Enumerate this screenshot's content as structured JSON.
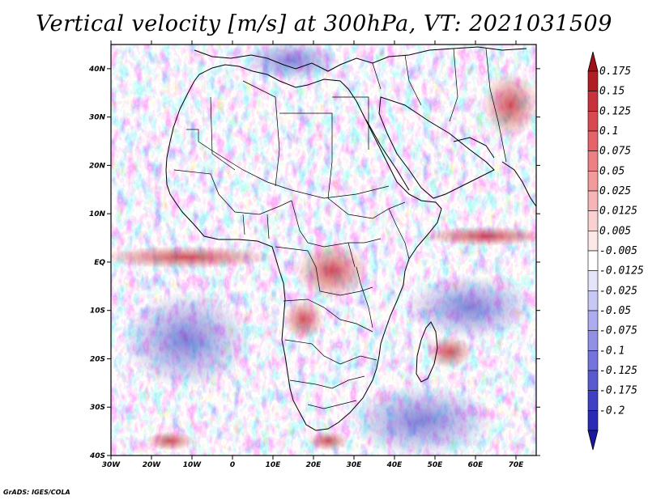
{
  "title": "Vertical velocity [m/s] at 300hPa, VT: 2021031509",
  "credit": "GrADS: IGES/COLA",
  "map": {
    "projection": "lat-lon",
    "lon_range": [
      -30,
      75
    ],
    "lat_range": [
      -40,
      45
    ],
    "lat_ticks": [
      {
        "value": 40,
        "label": "40N"
      },
      {
        "value": 30,
        "label": "30N"
      },
      {
        "value": 20,
        "label": "20N"
      },
      {
        "value": 10,
        "label": "10N"
      },
      {
        "value": 0,
        "label": "EQ"
      },
      {
        "value": -10,
        "label": "10S"
      },
      {
        "value": -20,
        "label": "20S"
      },
      {
        "value": -30,
        "label": "30S"
      },
      {
        "value": -40,
        "label": "40S"
      }
    ],
    "lon_ticks": [
      {
        "value": -30,
        "label": "30W"
      },
      {
        "value": -20,
        "label": "20W"
      },
      {
        "value": -10,
        "label": "10W"
      },
      {
        "value": 0,
        "label": "0"
      },
      {
        "value": 10,
        "label": "10E"
      },
      {
        "value": 20,
        "label": "20E"
      },
      {
        "value": 30,
        "label": "30E"
      },
      {
        "value": 40,
        "label": "40E"
      },
      {
        "value": 50,
        "label": "50E"
      },
      {
        "value": 60,
        "label": "60E"
      },
      {
        "value": 70,
        "label": "70E"
      }
    ]
  },
  "colorbar": {
    "levels": [
      {
        "label": "0.175",
        "color": "#b01e24"
      },
      {
        "label": "0.15",
        "color": "#c8323a"
      },
      {
        "label": "0.125",
        "color": "#d84a50"
      },
      {
        "label": "0.1",
        "color": "#e46468"
      },
      {
        "label": "0.075",
        "color": "#ec8084"
      },
      {
        "label": "0.05",
        "color": "#f29a9c"
      },
      {
        "label": "0.025",
        "color": "#f6b6b6"
      },
      {
        "label": "0.0125",
        "color": "#fad0d0"
      },
      {
        "label": "0.005",
        "color": "#fde8e8"
      },
      {
        "label": "-0.005",
        "color": "#ffffff"
      },
      {
        "label": "-0.0125",
        "color": "#e4e4fa"
      },
      {
        "label": "-0.025",
        "color": "#c8c8f4"
      },
      {
        "label": "-0.05",
        "color": "#acacee"
      },
      {
        "label": "-0.075",
        "color": "#9090e6"
      },
      {
        "label": "-0.1",
        "color": "#7474dc"
      },
      {
        "label": "-0.125",
        "color": "#5a5ad0"
      },
      {
        "label": "-0.175",
        "color": "#4040c4"
      },
      {
        "label": "-0.2",
        "color": "#2a2ab4"
      }
    ],
    "top_arrow_color": "#a01018",
    "bottom_arrow_color": "#1a1aa0"
  }
}
